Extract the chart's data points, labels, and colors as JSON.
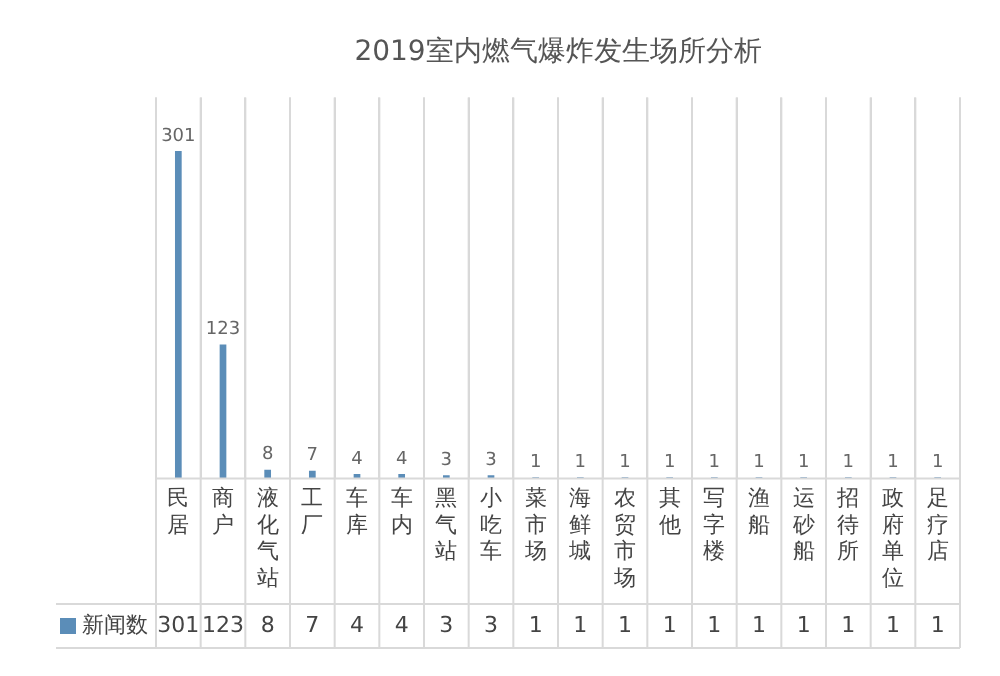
{
  "chart_data": {
    "type": "bar",
    "title": "2019室内燃气爆炸发生场所分析",
    "categories": [
      "民居",
      "商户",
      "液化气站",
      "工厂",
      "车库",
      "车内",
      "黑气站",
      "小吃车",
      "菜市场",
      "海鲜城",
      "农贸市场",
      "其他",
      "写字楼",
      "渔船",
      "运砂船",
      "招待所",
      "政府单位",
      "足疗店"
    ],
    "series": [
      {
        "name": "新闻数",
        "color": "#5b8db8",
        "values": [
          301,
          123,
          8,
          7,
          4,
          4,
          3,
          3,
          1,
          1,
          1,
          1,
          1,
          1,
          1,
          1,
          1,
          1
        ]
      }
    ],
    "annotations": [
      "301",
      "123",
      "8",
      "7",
      "4",
      "4",
      "3",
      "3",
      "1",
      "1",
      "1",
      "1",
      "1",
      "1",
      "1",
      "1",
      "1",
      "1"
    ],
    "data_labels": true,
    "legend": "bottom",
    "grid": "x"
  }
}
